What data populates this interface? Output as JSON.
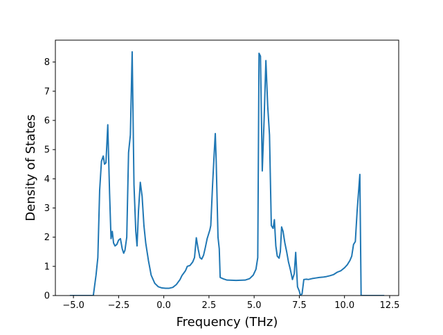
{
  "chart_data": {
    "type": "line",
    "title": "",
    "xlabel": "Frequency (THz)",
    "ylabel": "Density of States",
    "xlim": [
      -6.0,
      13.0
    ],
    "ylim": [
      0,
      8.75
    ],
    "grid": false,
    "x_ticks": [
      -5.0,
      -2.5,
      0.0,
      2.5,
      5.0,
      7.5,
      10.0,
      12.5
    ],
    "x_tick_labels": [
      "−5.0",
      "−2.5",
      "0.0",
      "2.5",
      "5.0",
      "7.5",
      "10.0",
      "12.5"
    ],
    "y_ticks": [
      0,
      1,
      2,
      3,
      4,
      5,
      6,
      7,
      8
    ],
    "y_tick_labels": [
      "0",
      "1",
      "2",
      "3",
      "4",
      "5",
      "6",
      "7",
      "8"
    ],
    "series": [
      {
        "color": "#1f77b4",
        "points": [
          [
            -5.2,
            0.0
          ],
          [
            -3.9,
            0.0
          ],
          [
            -3.75,
            0.7
          ],
          [
            -3.65,
            1.3
          ],
          [
            -3.55,
            3.6
          ],
          [
            -3.45,
            4.6
          ],
          [
            -3.35,
            4.78
          ],
          [
            -3.28,
            4.5
          ],
          [
            -3.2,
            4.55
          ],
          [
            -3.1,
            5.85
          ],
          [
            -3.0,
            3.5
          ],
          [
            -2.92,
            1.95
          ],
          [
            -2.85,
            2.2
          ],
          [
            -2.78,
            1.8
          ],
          [
            -2.7,
            1.7
          ],
          [
            -2.6,
            1.75
          ],
          [
            -2.5,
            1.9
          ],
          [
            -2.4,
            1.95
          ],
          [
            -2.3,
            1.6
          ],
          [
            -2.22,
            1.45
          ],
          [
            -2.15,
            1.55
          ],
          [
            -2.05,
            2.0
          ],
          [
            -1.95,
            4.9
          ],
          [
            -1.85,
            5.5
          ],
          [
            -1.75,
            8.35
          ],
          [
            -1.65,
            3.8
          ],
          [
            -1.55,
            2.2
          ],
          [
            -1.48,
            1.7
          ],
          [
            -1.4,
            2.9
          ],
          [
            -1.3,
            3.88
          ],
          [
            -1.2,
            3.4
          ],
          [
            -1.1,
            2.4
          ],
          [
            -1.0,
            1.8
          ],
          [
            -0.85,
            1.2
          ],
          [
            -0.7,
            0.7
          ],
          [
            -0.5,
            0.42
          ],
          [
            -0.3,
            0.3
          ],
          [
            -0.1,
            0.26
          ],
          [
            0.1,
            0.25
          ],
          [
            0.3,
            0.25
          ],
          [
            0.5,
            0.28
          ],
          [
            0.7,
            0.38
          ],
          [
            0.9,
            0.55
          ],
          [
            1.0,
            0.68
          ],
          [
            1.2,
            0.85
          ],
          [
            1.3,
            1.0
          ],
          [
            1.45,
            1.03
          ],
          [
            1.6,
            1.15
          ],
          [
            1.7,
            1.3
          ],
          [
            1.8,
            1.98
          ],
          [
            1.9,
            1.6
          ],
          [
            2.0,
            1.3
          ],
          [
            2.1,
            1.25
          ],
          [
            2.2,
            1.38
          ],
          [
            2.3,
            1.65
          ],
          [
            2.4,
            1.95
          ],
          [
            2.55,
            2.25
          ],
          [
            2.6,
            2.4
          ],
          [
            2.7,
            3.8
          ],
          [
            2.8,
            5.0
          ],
          [
            2.85,
            5.55
          ],
          [
            2.9,
            4.6
          ],
          [
            3.0,
            2.0
          ],
          [
            3.07,
            1.6
          ],
          [
            3.12,
            0.62
          ],
          [
            3.3,
            0.57
          ],
          [
            3.5,
            0.53
          ],
          [
            4.0,
            0.52
          ],
          [
            4.5,
            0.53
          ],
          [
            4.75,
            0.58
          ],
          [
            4.95,
            0.7
          ],
          [
            5.1,
            0.9
          ],
          [
            5.2,
            1.3
          ],
          [
            5.27,
            8.3
          ],
          [
            5.35,
            8.2
          ],
          [
            5.45,
            4.27
          ],
          [
            5.55,
            6.0
          ],
          [
            5.65,
            8.05
          ],
          [
            5.75,
            6.5
          ],
          [
            5.85,
            5.5
          ],
          [
            5.95,
            2.4
          ],
          [
            6.05,
            2.3
          ],
          [
            6.12,
            2.6
          ],
          [
            6.2,
            1.7
          ],
          [
            6.28,
            1.35
          ],
          [
            6.38,
            1.28
          ],
          [
            6.45,
            1.5
          ],
          [
            6.52,
            2.35
          ],
          [
            6.6,
            2.2
          ],
          [
            6.7,
            1.8
          ],
          [
            6.8,
            1.5
          ],
          [
            6.9,
            1.15
          ],
          [
            7.0,
            0.9
          ],
          [
            7.12,
            0.55
          ],
          [
            7.22,
            0.75
          ],
          [
            7.3,
            1.48
          ],
          [
            7.4,
            0.3
          ],
          [
            7.5,
            0.15
          ],
          [
            7.55,
            0.02
          ],
          [
            7.65,
            0.05
          ],
          [
            7.75,
            0.55
          ],
          [
            7.9,
            0.56
          ],
          [
            8.0,
            0.55
          ],
          [
            8.2,
            0.58
          ],
          [
            8.4,
            0.6
          ],
          [
            8.6,
            0.62
          ],
          [
            8.8,
            0.63
          ],
          [
            9.0,
            0.65
          ],
          [
            9.2,
            0.68
          ],
          [
            9.4,
            0.72
          ],
          [
            9.6,
            0.8
          ],
          [
            9.8,
            0.85
          ],
          [
            10.0,
            0.95
          ],
          [
            10.15,
            1.05
          ],
          [
            10.3,
            1.2
          ],
          [
            10.4,
            1.35
          ],
          [
            10.5,
            1.75
          ],
          [
            10.6,
            1.85
          ],
          [
            10.7,
            2.9
          ],
          [
            10.85,
            4.15
          ],
          [
            10.92,
            0.0
          ],
          [
            12.2,
            0.0
          ]
        ]
      }
    ]
  }
}
